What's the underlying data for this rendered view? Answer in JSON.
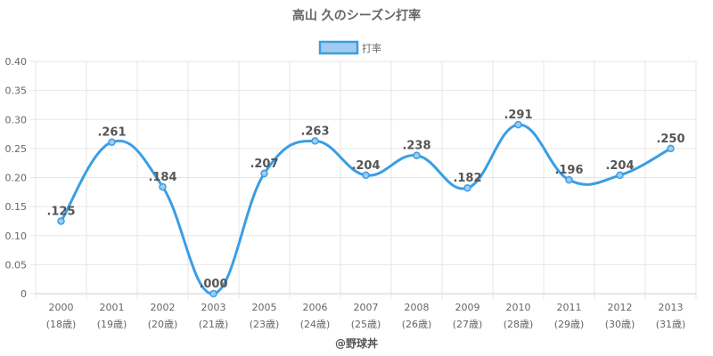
{
  "page": {
    "credit": "@野球丼"
  },
  "chart_data": {
    "type": "line",
    "title": "高山 久のシーズン打率",
    "categories": [
      "2000",
      "2001",
      "2002",
      "2003",
      "2005",
      "2006",
      "2007",
      "2008",
      "2009",
      "2010",
      "2011",
      "2012",
      "2013"
    ],
    "sublabels": [
      "(18歳)",
      "(19歳)",
      "(20歳)",
      "(21歳)",
      "(23歳)",
      "(24歳)",
      "(25歳)",
      "(26歳)",
      "(27歳)",
      "(28歳)",
      "(29歳)",
      "(30歳)",
      "(31歳)"
    ],
    "series": [
      {
        "name": "打率",
        "values": [
          0.125,
          0.261,
          0.184,
          0.0,
          0.207,
          0.263,
          0.204,
          0.238,
          0.182,
          0.291,
          0.196,
          0.204,
          0.25
        ],
        "labels": [
          ".125",
          ".261",
          ".184",
          ".000",
          ".207",
          ".263",
          ".204",
          ".238",
          ".182",
          ".291",
          ".196",
          ".204",
          ".250"
        ],
        "color": "#3a9ee4",
        "fill": "#9fccf0"
      }
    ],
    "yticks": [
      "0",
      "0.05",
      "0.10",
      "0.15",
      "0.20",
      "0.25",
      "0.30",
      "0.35",
      "0.40"
    ],
    "ylim": [
      0,
      0.4
    ],
    "grid": true,
    "legend": "top-center"
  }
}
